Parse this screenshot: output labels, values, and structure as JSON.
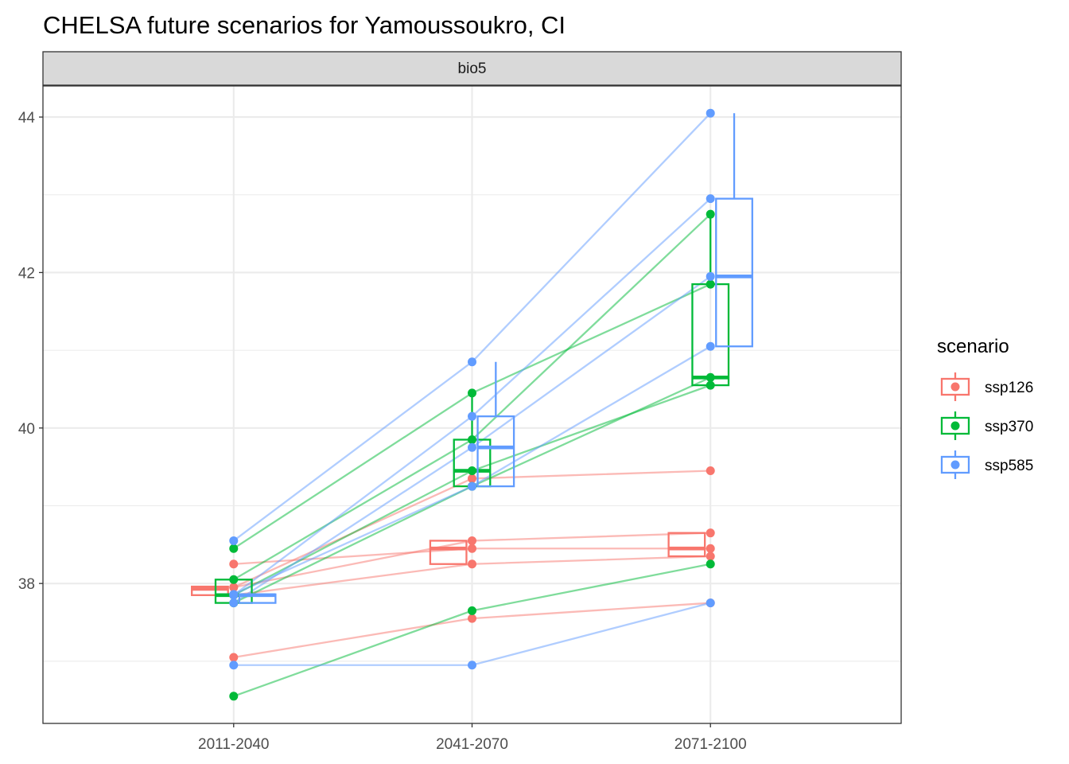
{
  "chart_data": {
    "type": "boxplot",
    "title": "CHELSA future scenarios for Yamoussoukro, CI",
    "facet": "bio5",
    "xlabel": "",
    "ylabel": "",
    "categories": [
      "2011-2040",
      "2041-2070",
      "2071-2100"
    ],
    "ylim": [
      36.2,
      44.4
    ],
    "yticks": [
      38,
      40,
      42,
      44
    ],
    "grid": true,
    "legend": {
      "title": "scenario",
      "position": "right",
      "entries": [
        "ssp126",
        "ssp370",
        "ssp585"
      ]
    },
    "series": [
      {
        "name": "ssp126",
        "color": "#F8766D",
        "boxes": [
          {
            "q1": 37.85,
            "median": 37.93,
            "q3": 37.96,
            "lo": 37.85,
            "hi": 37.96
          },
          {
            "q1": 38.25,
            "median": 38.45,
            "q3": 38.55,
            "lo": 38.25,
            "hi": 38.55
          },
          {
            "q1": 38.35,
            "median": 38.45,
            "q3": 38.65,
            "lo": 38.35,
            "hi": 38.65
          }
        ],
        "lines": [
          [
            37.95,
            38.55,
            38.65
          ],
          [
            37.85,
            38.25,
            38.35
          ],
          [
            38.25,
            38.45,
            38.45
          ],
          [
            37.05,
            37.55,
            37.75
          ],
          [
            37.95,
            39.35,
            39.45
          ]
        ]
      },
      {
        "name": "ssp370",
        "color": "#00BA38",
        "boxes": [
          {
            "q1": 37.75,
            "median": 37.85,
            "q3": 38.05,
            "lo": 37.75,
            "hi": 38.05
          },
          {
            "q1": 39.25,
            "median": 39.45,
            "q3": 39.85,
            "lo": 39.25,
            "hi": 40.45
          },
          {
            "q1": 40.55,
            "median": 40.65,
            "q3": 41.85,
            "lo": 40.55,
            "hi": 42.75
          }
        ],
        "lines": [
          [
            38.45,
            40.45,
            41.85
          ],
          [
            38.05,
            39.85,
            42.75
          ],
          [
            37.85,
            39.45,
            40.55
          ],
          [
            37.75,
            39.25,
            40.65
          ],
          [
            36.55,
            37.65,
            38.25
          ]
        ]
      },
      {
        "name": "ssp585",
        "color": "#619CFF",
        "boxes": [
          {
            "q1": 37.75,
            "median": 37.85,
            "q3": 37.86,
            "lo": 37.75,
            "hi": 37.86
          },
          {
            "q1": 39.25,
            "median": 39.75,
            "q3": 40.15,
            "lo": 39.25,
            "hi": 40.85
          },
          {
            "q1": 41.05,
            "median": 41.95,
            "q3": 42.95,
            "lo": 41.05,
            "hi": 44.05
          }
        ],
        "lines": [
          [
            38.55,
            40.85,
            44.05
          ],
          [
            37.85,
            40.15,
            42.95
          ],
          [
            37.75,
            39.75,
            41.95
          ],
          [
            37.86,
            39.25,
            41.05
          ],
          [
            36.95,
            36.95,
            37.75
          ]
        ]
      }
    ]
  }
}
